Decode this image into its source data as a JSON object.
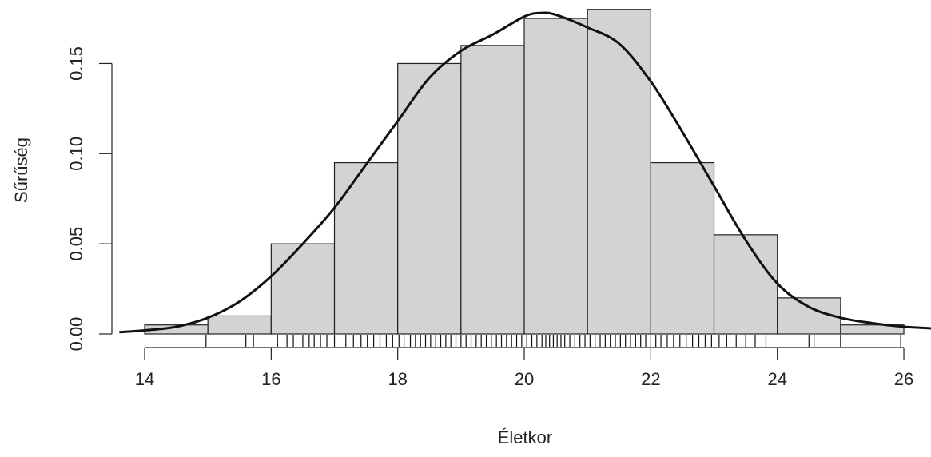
{
  "chart_data": {
    "type": "histogram",
    "title": "",
    "xlabel": "Életkor",
    "ylabel": "Sűrűség",
    "xlim": [
      13.6,
      26.5
    ],
    "ylim": [
      0,
      0.18
    ],
    "x_ticks": [
      14,
      16,
      18,
      20,
      22,
      24,
      26
    ],
    "x_tick_labels": [
      "14",
      "16",
      "18",
      "20",
      "22",
      "24",
      "26"
    ],
    "y_ticks": [
      0.0,
      0.05,
      0.1,
      0.15
    ],
    "y_tick_labels": [
      "0.00",
      "0.05",
      "0.10",
      "0.15"
    ],
    "bins": [
      {
        "start": 14,
        "end": 15,
        "density": 0.005
      },
      {
        "start": 15,
        "end": 16,
        "density": 0.01
      },
      {
        "start": 16,
        "end": 17,
        "density": 0.05
      },
      {
        "start": 17,
        "end": 18,
        "density": 0.095
      },
      {
        "start": 18,
        "end": 19,
        "density": 0.15
      },
      {
        "start": 19,
        "end": 20,
        "density": 0.16
      },
      {
        "start": 20,
        "end": 21,
        "density": 0.175
      },
      {
        "start": 21,
        "end": 22,
        "density": 0.18
      },
      {
        "start": 22,
        "end": 23,
        "density": 0.095
      },
      {
        "start": 23,
        "end": 24,
        "density": 0.055
      },
      {
        "start": 24,
        "end": 25,
        "density": 0.02
      },
      {
        "start": 25,
        "end": 26,
        "density": 0.005
      }
    ],
    "density_curve": {
      "x": [
        13.6,
        14.0,
        14.5,
        15.0,
        15.5,
        16.0,
        16.5,
        17.0,
        17.5,
        18.0,
        18.5,
        19.0,
        19.5,
        20.0,
        20.25,
        20.5,
        21.0,
        21.5,
        22.0,
        22.5,
        23.0,
        23.5,
        24.0,
        24.5,
        25.0,
        25.5,
        26.0,
        26.5
      ],
      "y": [
        0.001,
        0.002,
        0.004,
        0.009,
        0.018,
        0.032,
        0.05,
        0.07,
        0.094,
        0.118,
        0.142,
        0.157,
        0.166,
        0.176,
        0.178,
        0.177,
        0.17,
        0.161,
        0.14,
        0.112,
        0.082,
        0.052,
        0.028,
        0.015,
        0.009,
        0.006,
        0.004,
        0.003
      ]
    },
    "rug": [
      14.97,
      15.6,
      15.72,
      16.1,
      16.25,
      16.35,
      16.5,
      16.6,
      16.68,
      16.78,
      16.88,
      17.0,
      17.18,
      17.3,
      17.42,
      17.52,
      17.62,
      17.72,
      17.82,
      17.92,
      18.02,
      18.1,
      18.2,
      18.28,
      18.36,
      18.44,
      18.52,
      18.6,
      18.68,
      18.76,
      18.84,
      18.92,
      19.0,
      19.08,
      19.16,
      19.24,
      19.32,
      19.4,
      19.48,
      19.56,
      19.64,
      19.72,
      19.8,
      19.88,
      19.96,
      20.04,
      20.12,
      20.2,
      20.28,
      20.34,
      20.4,
      20.46,
      20.52,
      20.58,
      20.64,
      20.72,
      20.8,
      20.88,
      20.96,
      21.04,
      21.12,
      21.2,
      21.28,
      21.36,
      21.44,
      21.52,
      21.6,
      21.68,
      21.76,
      21.84,
      21.92,
      22.0,
      22.08,
      22.16,
      22.26,
      22.36,
      22.46,
      22.56,
      22.66,
      22.76,
      22.86,
      22.96,
      23.08,
      23.2,
      23.35,
      23.5,
      23.65,
      23.82,
      24.5,
      24.58,
      25.0,
      25.95
    ]
  }
}
